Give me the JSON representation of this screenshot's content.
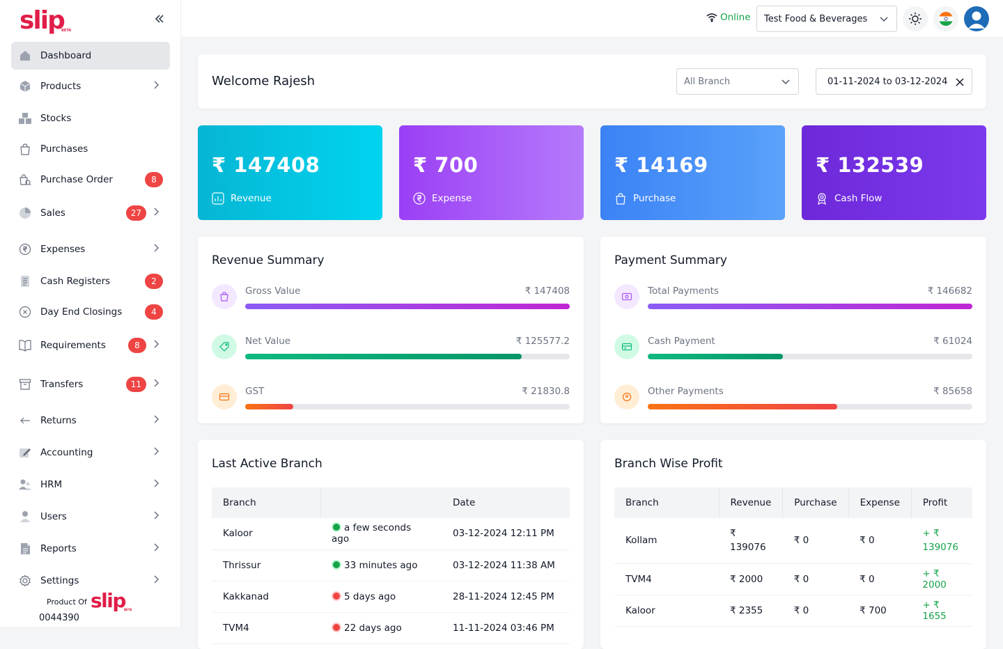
{
  "brand": {
    "name": "slip",
    "beta": "BETA"
  },
  "sidebar": {
    "items": [
      {
        "label": "Dashboard",
        "icon": "home-icon",
        "badge": "",
        "chevron": false,
        "active": true
      },
      {
        "label": "Products",
        "icon": "box-icon",
        "badge": "",
        "chevron": true
      },
      {
        "label": "Stocks",
        "icon": "boxes-icon",
        "badge": "",
        "chevron": false
      },
      {
        "label": "Purchases",
        "icon": "bag-icon",
        "badge": "",
        "chevron": false
      },
      {
        "label": "Purchase Order",
        "icon": "order-icon",
        "badge": "8",
        "chevron": false
      },
      {
        "label": "Sales",
        "icon": "pie-icon",
        "badge": "27",
        "chevron": true
      },
      {
        "label": "Expenses",
        "icon": "rupee-icon",
        "badge": "",
        "chevron": true
      },
      {
        "label": "Cash Registers",
        "icon": "register-icon",
        "badge": "2",
        "chevron": false
      },
      {
        "label": "Day End Closings",
        "icon": "close-circle-icon",
        "badge": "4",
        "chevron": false
      },
      {
        "label": "Requirements",
        "icon": "book-icon",
        "badge": "8",
        "chevron": true
      },
      {
        "label": "Transfers",
        "icon": "archive-icon",
        "badge": "11",
        "chevron": true
      },
      {
        "label": "Returns",
        "icon": "return-arrow-icon",
        "badge": "",
        "chevron": true
      },
      {
        "label": "Accounting",
        "icon": "edit-icon",
        "badge": "",
        "chevron": true
      },
      {
        "label": "HRM",
        "icon": "people-icon",
        "badge": "",
        "chevron": true
      },
      {
        "label": "Users",
        "icon": "user-icon",
        "badge": "",
        "chevron": true
      },
      {
        "label": "Reports",
        "icon": "report-icon",
        "badge": "",
        "chevron": true
      },
      {
        "label": "Settings",
        "icon": "gear-icon",
        "badge": "",
        "chevron": true
      }
    ],
    "footer": {
      "product_of": "Product Of",
      "code": "0044390"
    }
  },
  "topbar": {
    "status": "Online",
    "company": "Test Food & Beverages"
  },
  "welcome": {
    "title": "Welcome Rajesh",
    "branch_placeholder": "All Branch",
    "date_range": "01-11-2024 to 03-12-2024"
  },
  "stats": [
    {
      "value": "₹ 147408",
      "label": "Revenue",
      "icon": "chart-icon"
    },
    {
      "value": "₹ 700",
      "label": "Expense",
      "icon": "rupee-icon"
    },
    {
      "value": "₹ 14169",
      "label": "Purchase",
      "icon": "bag-icon"
    },
    {
      "value": "₹ 132539",
      "label": "Cash Flow",
      "icon": "award-icon"
    }
  ],
  "revenue_summary": {
    "title": "Revenue Summary",
    "metrics": [
      {
        "label": "Gross Value",
        "value": "₹ 147408",
        "fraction": 1.0,
        "color": "#a21caf"
      },
      {
        "label": "Net Value",
        "value": "₹ 125577.2",
        "fraction": 0.852,
        "color": "#059669"
      },
      {
        "label": "GST",
        "value": "₹ 21830.8",
        "fraction": 0.148,
        "color": "#f97316"
      }
    ]
  },
  "payment_summary": {
    "title": "Payment Summary",
    "metrics": [
      {
        "label": "Total Payments",
        "value": "₹ 146682",
        "fraction": 1.0,
        "color": "#a21caf"
      },
      {
        "label": "Cash Payment",
        "value": "₹ 61024",
        "fraction": 0.416,
        "color": "#059669"
      },
      {
        "label": "Other Payments",
        "value": "₹ 85658",
        "fraction": 0.584,
        "color": "#f97316"
      }
    ]
  },
  "last_active": {
    "title": "Last Active Branch",
    "headers": [
      "Branch",
      "",
      "Date"
    ],
    "rows": [
      {
        "branch": "Kaloor",
        "status": "green",
        "ago": "a few seconds ago",
        "date": "03-12-2024 12:11 PM"
      },
      {
        "branch": "Thrissur",
        "status": "green",
        "ago": "33 minutes ago",
        "date": "03-12-2024 11:38 AM"
      },
      {
        "branch": "Kakkanad",
        "status": "red",
        "ago": "5 days ago",
        "date": "28-11-2024 12:45 PM"
      },
      {
        "branch": "TVM4",
        "status": "red",
        "ago": "22 days ago",
        "date": "11-11-2024 03:46 PM"
      }
    ]
  },
  "branch_profit": {
    "title": "Branch Wise Profit",
    "headers": [
      "Branch",
      "Revenue",
      "Purchase",
      "Expense",
      "Profit"
    ],
    "rows": [
      {
        "branch": "Kollam",
        "revenue": "₹ 139076",
        "purchase": "₹ 0",
        "expense": "₹ 0",
        "profit": "+ ₹ 139076"
      },
      {
        "branch": "TVM4",
        "revenue": "₹ 2000",
        "purchase": "₹ 0",
        "expense": "₹ 0",
        "profit": "+ ₹ 2000"
      },
      {
        "branch": "Kaloor",
        "revenue": "₹ 2355",
        "purchase": "₹ 0",
        "expense": "₹ 700",
        "profit": "+ ₹ 1655"
      }
    ]
  }
}
